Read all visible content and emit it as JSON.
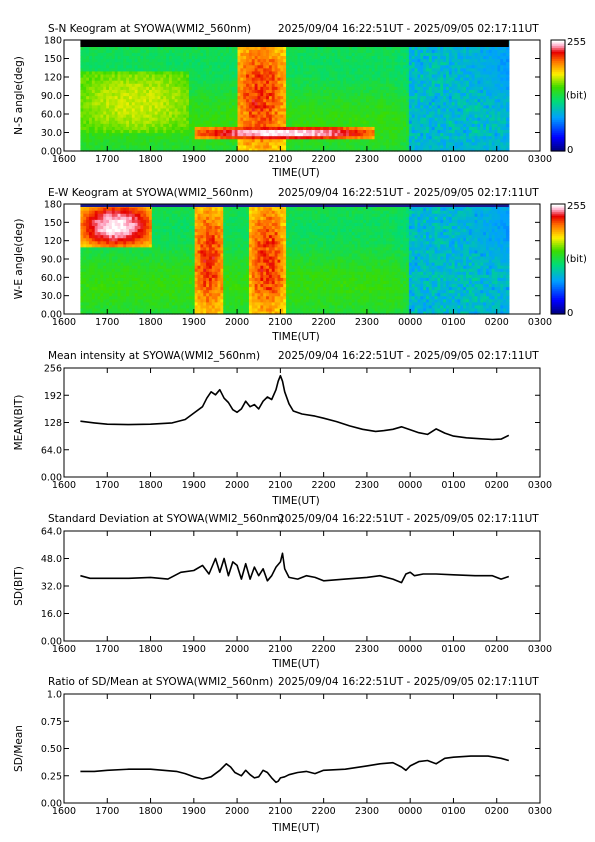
{
  "chart_data": [
    {
      "type": "heatmap",
      "title": "S-N Keogram at SYOWA(WMI2_560nm)",
      "time_range": "2025/09/04 16:22:51UT - 2025/09/05 02:17:11UT",
      "xlabel": "TIME(UT)",
      "ylabel": "N-S angle(deg)",
      "x_ticks": [
        "1600",
        "1700",
        "1800",
        "1900",
        "2000",
        "2100",
        "2200",
        "2300",
        "0000",
        "0100",
        "0200",
        "0300"
      ],
      "y_ticks": [
        "0.00",
        "30.0",
        "60.0",
        "90.0",
        "120",
        "150",
        "180"
      ],
      "ylim": [
        0,
        180
      ],
      "colorbar": {
        "min_label": "0",
        "max_label": "255",
        "unit": "(bit)"
      },
      "features": [
        {
          "label": "main arc",
          "t_start": 19.0,
          "t_end": 23.2,
          "angle_start": 20,
          "angle_end": 40,
          "level": "very high"
        },
        {
          "label": "bright burst",
          "t_start": 20.0,
          "t_end": 21.1,
          "angle_start": 0,
          "angle_end": 180,
          "level": "high"
        },
        {
          "label": "early patch",
          "t_start": 16.4,
          "t_end": 18.9,
          "angle_start": 30,
          "angle_end": 130,
          "level": "moderate"
        },
        {
          "label": "late dim region",
          "t_start": 24.0,
          "t_end": 26.3,
          "angle_start": 0,
          "angle_end": 180,
          "level": "low"
        }
      ]
    },
    {
      "type": "heatmap",
      "title": "E-W Keogram at SYOWA(WMI2_560nm)",
      "time_range": "2025/09/04 16:22:51UT - 2025/09/05 02:17:11UT",
      "xlabel": "TIME(UT)",
      "ylabel": "W-E angle(deg)",
      "x_ticks": [
        "1600",
        "1700",
        "1800",
        "1900",
        "2000",
        "2100",
        "2200",
        "2300",
        "0000",
        "0100",
        "0200",
        "0300"
      ],
      "y_ticks": [
        "0.00",
        "30.0",
        "60.0",
        "90.0",
        "120",
        "150",
        "180"
      ],
      "ylim": [
        0,
        180
      ],
      "colorbar": {
        "min_label": "0",
        "max_label": "255",
        "unit": "(bit)"
      },
      "features": [
        {
          "label": "west glow",
          "t_start": 16.4,
          "t_end": 18.0,
          "angle_start": 110,
          "angle_end": 180,
          "level": "very high"
        },
        {
          "label": "burst 1",
          "t_start": 19.0,
          "t_end": 19.7,
          "angle_start": 0,
          "angle_end": 180,
          "level": "high"
        },
        {
          "label": "burst 2",
          "t_start": 20.3,
          "t_end": 21.1,
          "angle_start": 0,
          "angle_end": 180,
          "level": "high"
        },
        {
          "label": "late dim region",
          "t_start": 24.0,
          "t_end": 26.3,
          "angle_start": 0,
          "angle_end": 180,
          "level": "low"
        }
      ]
    },
    {
      "type": "line",
      "title": "Mean intensity at SYOWA(WMI2_560nm)",
      "time_range": "2025/09/04 16:22:51UT - 2025/09/05 02:17:11UT",
      "xlabel": "TIME(UT)",
      "ylabel": "MEAN(BIT)",
      "x_ticks": [
        "1600",
        "1700",
        "1800",
        "1900",
        "2000",
        "2100",
        "2200",
        "2300",
        "0000",
        "0100",
        "0200",
        "0300"
      ],
      "y_ticks": [
        "0.00",
        "64.0",
        "128",
        "192",
        "256"
      ],
      "ylim": [
        0,
        256
      ],
      "xlim_hours": [
        16,
        27
      ],
      "series": [
        {
          "x": [
            16.38,
            16.7,
            17.0,
            17.5,
            18.0,
            18.5,
            18.8,
            19.0,
            19.2,
            19.3,
            19.4,
            19.5,
            19.6,
            19.7,
            19.8,
            19.9,
            20.0,
            20.1,
            20.2,
            20.3,
            20.4,
            20.5,
            20.6,
            20.7,
            20.8,
            20.9,
            20.95,
            21.0,
            21.05,
            21.1,
            21.2,
            21.3,
            21.5,
            21.8,
            22.0,
            22.3,
            22.6,
            22.9,
            23.2,
            23.4,
            23.6,
            23.8,
            24.0,
            24.2,
            24.4,
            24.6,
            24.8,
            25.0,
            25.3,
            25.6,
            25.9,
            26.1,
            26.28
          ],
          "y": [
            131,
            127,
            124,
            123,
            124,
            127,
            135,
            150,
            165,
            185,
            200,
            193,
            205,
            185,
            175,
            158,
            152,
            160,
            178,
            165,
            170,
            160,
            178,
            188,
            182,
            205,
            225,
            238,
            225,
            200,
            172,
            155,
            148,
            143,
            138,
            130,
            120,
            112,
            107,
            109,
            112,
            118,
            111,
            104,
            100,
            113,
            103,
            96,
            92,
            90,
            88,
            89,
            98
          ]
        }
      ]
    },
    {
      "type": "line",
      "title": "Standard Deviation at SYOWA(WMI2_560nm)",
      "time_range": "2025/09/04 16:22:51UT - 2025/09/05 02:17:11UT",
      "xlabel": "TIME(UT)",
      "ylabel": "SD(BIT)",
      "x_ticks": [
        "1600",
        "1700",
        "1800",
        "1900",
        "2000",
        "2100",
        "2200",
        "2300",
        "0000",
        "0100",
        "0200",
        "0300"
      ],
      "y_ticks": [
        "0.00",
        "16.0",
        "32.0",
        "48.0",
        "64.0"
      ],
      "ylim": [
        0,
        64
      ],
      "xlim_hours": [
        16,
        27
      ],
      "series": [
        {
          "x": [
            16.38,
            16.6,
            17.0,
            17.5,
            18.0,
            18.4,
            18.7,
            19.0,
            19.2,
            19.35,
            19.5,
            19.6,
            19.7,
            19.8,
            19.9,
            20.0,
            20.1,
            20.2,
            20.3,
            20.4,
            20.5,
            20.6,
            20.7,
            20.8,
            20.9,
            21.0,
            21.05,
            21.1,
            21.2,
            21.4,
            21.6,
            21.8,
            22.0,
            22.5,
            23.0,
            23.3,
            23.6,
            23.8,
            23.9,
            24.0,
            24.1,
            24.3,
            24.6,
            25.0,
            25.5,
            25.9,
            26.1,
            26.28
          ],
          "y": [
            38,
            36.5,
            36.5,
            36.5,
            37,
            36,
            40,
            41,
            44,
            39,
            48,
            40,
            48,
            38,
            46,
            44,
            36,
            45,
            36,
            43,
            38,
            42,
            35,
            38,
            43,
            46,
            51,
            42,
            37,
            36,
            38,
            37,
            35,
            36,
            37,
            38,
            36,
            34,
            39,
            40,
            38,
            39,
            39,
            38.5,
            38,
            38,
            36,
            37.5
          ]
        }
      ]
    },
    {
      "type": "line",
      "title": "Ratio of SD/Mean at SYOWA(WMI2_560nm)",
      "time_range": "2025/09/04 16:22:51UT - 2025/09/05 02:17:11UT",
      "xlabel": "TIME(UT)",
      "ylabel": "SD/Mean",
      "x_ticks": [
        "1600",
        "1700",
        "1800",
        "1900",
        "2000",
        "2100",
        "2200",
        "2300",
        "0000",
        "0100",
        "0200",
        "0300"
      ],
      "y_ticks": [
        "0.00",
        "0.25",
        "0.50",
        "0.75",
        "1.0"
      ],
      "ylim": [
        0,
        1.0
      ],
      "xlim_hours": [
        16,
        27
      ],
      "series": [
        {
          "x": [
            16.38,
            16.7,
            17.0,
            17.5,
            18.0,
            18.3,
            18.6,
            18.8,
            19.0,
            19.2,
            19.4,
            19.6,
            19.75,
            19.85,
            19.95,
            20.1,
            20.2,
            20.3,
            20.4,
            20.5,
            20.6,
            20.7,
            20.8,
            20.9,
            20.95,
            21.0,
            21.1,
            21.2,
            21.4,
            21.6,
            21.8,
            22.0,
            22.5,
            23.0,
            23.3,
            23.6,
            23.8,
            23.9,
            24.0,
            24.2,
            24.4,
            24.6,
            24.8,
            25.0,
            25.4,
            25.8,
            26.1,
            26.28
          ],
          "y": [
            0.29,
            0.29,
            0.3,
            0.31,
            0.31,
            0.3,
            0.29,
            0.27,
            0.24,
            0.22,
            0.24,
            0.3,
            0.36,
            0.33,
            0.28,
            0.25,
            0.3,
            0.26,
            0.23,
            0.24,
            0.3,
            0.28,
            0.23,
            0.19,
            0.2,
            0.23,
            0.24,
            0.26,
            0.28,
            0.29,
            0.27,
            0.3,
            0.31,
            0.34,
            0.36,
            0.37,
            0.33,
            0.3,
            0.34,
            0.38,
            0.39,
            0.36,
            0.41,
            0.42,
            0.43,
            0.43,
            0.41,
            0.39
          ]
        }
      ]
    }
  ]
}
